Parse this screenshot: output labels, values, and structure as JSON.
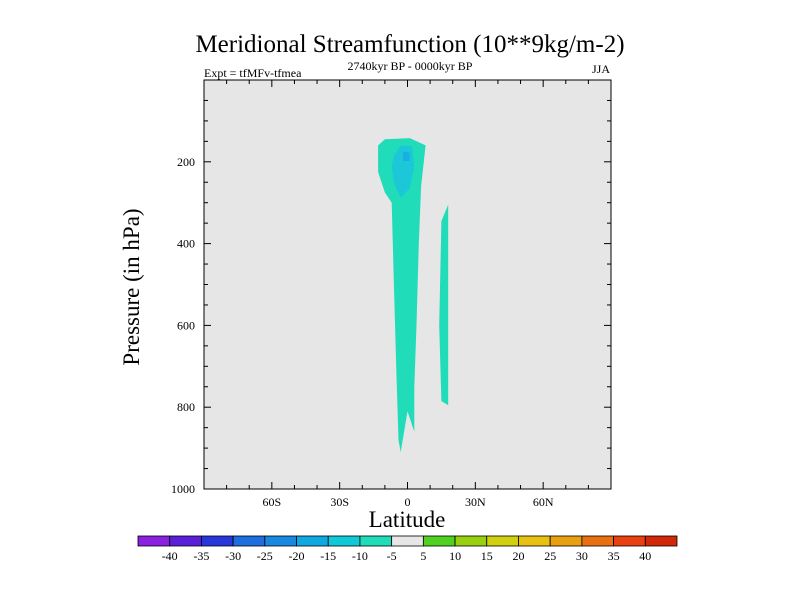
{
  "chart_data": {
    "type": "heatmap",
    "title": "Meridional Streamfunction (10**9kg/m-2)",
    "left_string": "Expt = tfMFv-tfmea",
    "center_string": "2740kyr BP - 0000kyr BP",
    "right_string": "JJA",
    "xlabel": "Latitude",
    "ylabel": "Pressure (in hPa)",
    "xlim": [
      -90,
      90
    ],
    "ylim": [
      0,
      1000
    ],
    "x_ticks": [
      {
        "value": -60,
        "label": "60S"
      },
      {
        "value": -30,
        "label": "30S"
      },
      {
        "value": 0,
        "label": "0"
      },
      {
        "value": 30,
        "label": "30N"
      },
      {
        "value": 60,
        "label": "60N"
      }
    ],
    "y_ticks": [
      {
        "value": 200,
        "label": "200"
      },
      {
        "value": 400,
        "label": "400"
      },
      {
        "value": 600,
        "label": "600"
      },
      {
        "value": 800,
        "label": "800"
      },
      {
        "value": 1000,
        "label": "1000"
      }
    ],
    "background_level": "-5 to 5",
    "contour_regions": [
      {
        "name": "equatorial-upper-negative",
        "range": "-10 to -5",
        "color": "#20dcb8",
        "outline": [
          [
            -13,
            160
          ],
          [
            -10,
            145
          ],
          [
            1,
            142
          ],
          [
            8,
            160
          ],
          [
            6,
            260
          ],
          [
            5,
            400
          ],
          [
            4,
            600
          ],
          [
            3,
            750
          ],
          [
            3,
            860
          ],
          [
            0,
            810
          ],
          [
            -3,
            910
          ],
          [
            -4,
            880
          ],
          [
            -5,
            700
          ],
          [
            -6,
            500
          ],
          [
            -7,
            300
          ],
          [
            -10,
            275
          ],
          [
            -13,
            225
          ]
        ]
      },
      {
        "name": "upper-core",
        "range": "-15 to -10",
        "color": "#1cc8d8",
        "outline": [
          [
            -6,
            185
          ],
          [
            -3,
            160
          ],
          [
            2,
            162
          ],
          [
            3,
            210
          ],
          [
            1,
            265
          ],
          [
            -3,
            288
          ],
          [
            -6,
            252
          ],
          [
            -7,
            210
          ]
        ]
      },
      {
        "name": "upper-core-inner",
        "range": "-20 to -15",
        "color": "#18b0e0",
        "outline": [
          [
            -2,
            175
          ],
          [
            1,
            178
          ],
          [
            1,
            198
          ],
          [
            -2,
            198
          ]
        ]
      },
      {
        "name": "northern-strip",
        "range": "-10 to -5",
        "color": "#20dcb8",
        "outline": [
          [
            15,
            345
          ],
          [
            18,
            305
          ],
          [
            18,
            400
          ],
          [
            18,
            795
          ],
          [
            15,
            785
          ],
          [
            14,
            600
          ]
        ]
      }
    ],
    "colorbar": {
      "labels": [
        "-40",
        "-35",
        "-30",
        "-25",
        "-20",
        "-15",
        "-10",
        "-5",
        "5",
        "10",
        "15",
        "20",
        "25",
        "30",
        "35",
        "40"
      ],
      "colors": [
        "#8a20e0",
        "#5a20d8",
        "#2838d8",
        "#1e6ee0",
        "#1888e0",
        "#10a8e0",
        "#10c8d8",
        "#20dcb8",
        "#e6e6e6",
        "#50d020",
        "#98d010",
        "#d0d010",
        "#e8c010",
        "#e8a010",
        "#e87010",
        "#e84010",
        "#d02808"
      ]
    }
  }
}
